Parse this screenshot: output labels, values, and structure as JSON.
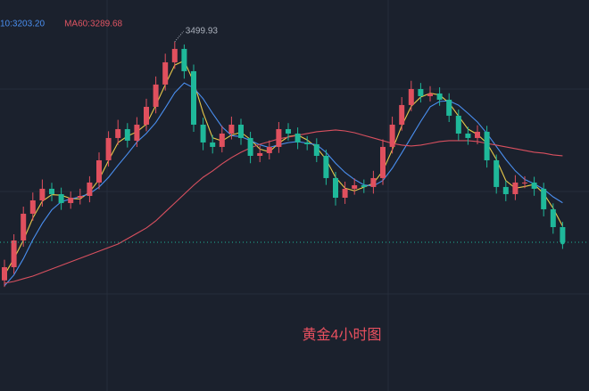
{
  "chart_data": {
    "type": "candlestick",
    "legend": [
      {
        "text": "10:3203.20",
        "color": "#4a8ff0"
      },
      {
        "text": "MA60:3289.68",
        "color": "#e05563"
      }
    ],
    "annotation": "黄金4小时图",
    "peak_index": 18,
    "ylim": [
      2856,
      3577
    ],
    "up_color": "#e0505e",
    "down_color": "#1fb89a",
    "open": [
      3060.0,
      3084.3,
      3133.6,
      3182.9,
      3207.5,
      3228.9,
      3219.0,
      3202.6,
      3212.4,
      3215.7,
      3240.4,
      3281.4,
      3322.5,
      3338.9,
      3317.6,
      3347.1,
      3380.0,
      3421.1,
      3462.1,
      3486.8,
      3445.7,
      3347.1,
      3314.3,
      3306.1,
      3330.7,
      3347.1,
      3322.5,
      3289.6,
      3294.6,
      3306.1,
      3338.9,
      3330.7,
      3314.3,
      3311.0,
      3289.6,
      3248.6,
      3212.4,
      3228.9,
      3235.4,
      3232.2,
      3248.6,
      3306.1,
      3347.1,
      3383.3,
      3412.8,
      3399.7,
      3404.6,
      3393.1,
      3363.6,
      3330.7,
      3322.5,
      3334.0,
      3281.4,
      3232.2,
      3219.0,
      3240.4,
      3240.4,
      3228.9,
      3191.1,
      3158.2
    ],
    "high": [
      3098,
      3145,
      3196,
      3222,
      3246,
      3240,
      3231,
      3224,
      3229,
      3252,
      3296,
      3335,
      3356,
      3350,
      3361,
      3395,
      3436,
      3478,
      3499.93,
      3495,
      3458,
      3360,
      3328,
      3345,
      3362,
      3358,
      3334,
      3308,
      3318,
      3352,
      3350,
      3342,
      3326,
      3322,
      3301,
      3260,
      3242,
      3248,
      3246,
      3262,
      3320,
      3362,
      3398,
      3428,
      3424,
      3418,
      3416,
      3405,
      3375,
      3343,
      3346,
      3345,
      3292,
      3244,
      3254,
      3252,
      3251,
      3240,
      3202,
      3168
    ],
    "low": [
      3048,
      3072,
      3122,
      3170,
      3196,
      3206,
      3190,
      3192,
      3200,
      3204,
      3228,
      3270,
      3310,
      3305,
      3306,
      3335,
      3368,
      3410,
      3450,
      3432,
      3334,
      3300,
      3294,
      3296,
      3320,
      3310,
      3276,
      3278,
      3283,
      3295,
      3318,
      3302,
      3300,
      3278,
      3236,
      3198,
      3201,
      3218,
      3221,
      3220,
      3236,
      3294,
      3336,
      3372,
      3388,
      3390,
      3382,
      3352,
      3318,
      3310,
      3311,
      3268,
      3220,
      3206,
      3208,
      3230,
      3216,
      3178,
      3146,
      3118
    ],
    "close": [
      3084.3,
      3133.6,
      3182.9,
      3207.5,
      3228.9,
      3219.0,
      3202.6,
      3212.4,
      3215.7,
      3240.4,
      3281.4,
      3322.5,
      3338.9,
      3317.6,
      3347.1,
      3380.0,
      3421.1,
      3462.1,
      3486.8,
      3445.7,
      3347.1,
      3314.3,
      3306.1,
      3330.7,
      3347.1,
      3322.5,
      3289.6,
      3294.6,
      3306.1,
      3338.9,
      3330.7,
      3314.3,
      3311.0,
      3289.6,
      3248.6,
      3212.4,
      3228.9,
      3235.4,
      3232.2,
      3248.6,
      3306.1,
      3347.1,
      3383.3,
      3412.8,
      3399.7,
      3404.6,
      3393.1,
      3363.6,
      3330.7,
      3322.5,
      3334.0,
      3281.4,
      3232.2,
      3219.0,
      3240.4,
      3240.4,
      3228.9,
      3191.1,
      3158.2,
      3130.3
    ],
    "series": [
      {
        "color": "#e8c94a",
        "values": [
          3070,
          3100,
          3134,
          3175,
          3206,
          3218,
          3217,
          3211,
          3210,
          3223,
          3246,
          3281,
          3314,
          3326,
          3334,
          3348,
          3383,
          3421,
          3457,
          3465,
          3426,
          3369,
          3323,
          3317,
          3328,
          3333,
          3320,
          3302,
          3297,
          3313,
          3325,
          3328,
          3319,
          3305,
          3283,
          3250,
          3230,
          3225,
          3232,
          3239,
          3262,
          3301,
          3345,
          3381,
          3398,
          3405,
          3402,
          3387,
          3363,
          3339,
          3329,
          3313,
          3283,
          3244,
          3230,
          3233,
          3237,
          3220,
          3193,
          3160
        ]
      },
      {
        "color": "#4a8ff0",
        "values": [
          3050,
          3070,
          3100,
          3135,
          3165,
          3190,
          3205,
          3210,
          3214,
          3220,
          3232,
          3250,
          3272,
          3293,
          3315,
          3331,
          3351,
          3378,
          3406,
          3424,
          3415,
          3395,
          3368,
          3343,
          3327,
          3325,
          3318,
          3310,
          3305,
          3310,
          3314,
          3316,
          3313,
          3310,
          3296,
          3276,
          3259,
          3246,
          3236,
          3234,
          3244,
          3267,
          3295,
          3324,
          3353,
          3380,
          3390,
          3391,
          3383,
          3368,
          3352,
          3331,
          3307,
          3283,
          3262,
          3246,
          3238,
          3228,
          3214,
          3203.2
        ]
      },
      {
        "color": "#d9505f",
        "values": [
          3054.7,
          3058.0,
          3063.0,
          3067.9,
          3074.5,
          3081.0,
          3087.6,
          3094.2,
          3100.7,
          3107.3,
          3113.9,
          3120.5,
          3127.0,
          3136.9,
          3146.7,
          3156.6,
          3169.7,
          3186.2,
          3202.6,
          3219.0,
          3235.4,
          3250.2,
          3261.7,
          3274.9,
          3286.4,
          3296.2,
          3304.4,
          3311.0,
          3315.9,
          3320.9,
          3324.2,
          3327.4,
          3330.7,
          3334.0,
          3335.6,
          3337.3,
          3335.6,
          3332.3,
          3327.4,
          3322.5,
          3317.6,
          3312.6,
          3309.4,
          3307.7,
          3309.4,
          3312.6,
          3315.9,
          3317.6,
          3317.6,
          3317.6,
          3315.9,
          3312.6,
          3309.4,
          3306.1,
          3302.8,
          3299.5,
          3296.2,
          3294.6,
          3291.3,
          3289.68
        ]
      }
    ]
  }
}
